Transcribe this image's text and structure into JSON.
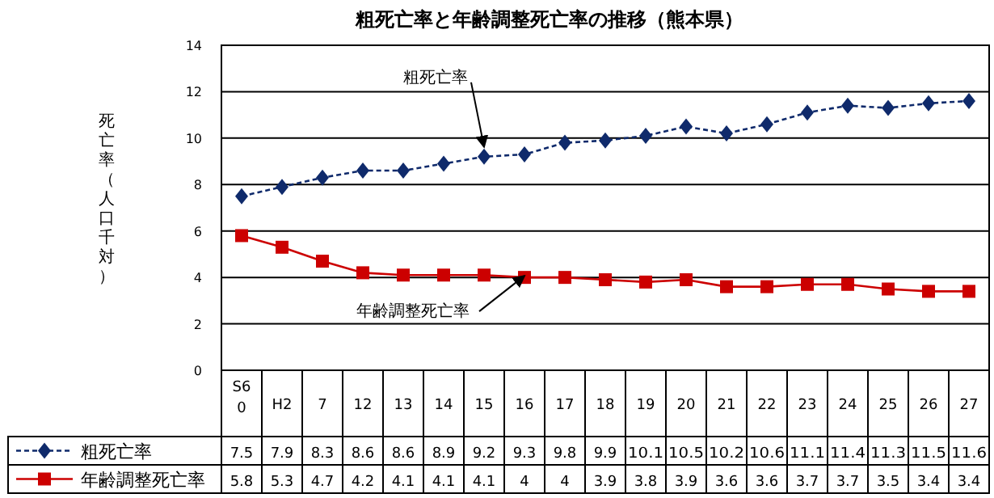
{
  "chart_data": {
    "type": "line",
    "title": "粗死亡率と年齢調整死亡率の推移（熊本県）",
    "ylabel": "死亡率（人口千対）",
    "categories": [
      "S60",
      "H2",
      "7",
      "12",
      "13",
      "14",
      "15",
      "16",
      "17",
      "18",
      "19",
      "20",
      "21",
      "22",
      "23",
      "24",
      "25",
      "26",
      "27"
    ],
    "series": [
      {
        "name": "粗死亡率",
        "color": "#0f2a6b",
        "marker": "diamond",
        "line_style": "dashed",
        "values": [
          7.5,
          7.9,
          8.3,
          8.6,
          8.6,
          8.9,
          9.2,
          9.3,
          9.8,
          9.9,
          10.1,
          10.5,
          10.2,
          10.6,
          11.1,
          11.4,
          11.3,
          11.5,
          11.6
        ]
      },
      {
        "name": "年齢調整死亡率",
        "color": "#cc0000",
        "marker": "square",
        "line_style": "solid",
        "values": [
          5.8,
          5.3,
          4.7,
          4.2,
          4.1,
          4.1,
          4.1,
          4,
          4,
          3.9,
          3.8,
          3.9,
          3.6,
          3.6,
          3.7,
          3.7,
          3.5,
          3.4,
          3.4
        ]
      }
    ],
    "ylim": [
      0,
      14
    ],
    "yticks": [
      0,
      2,
      4,
      6,
      8,
      10,
      12,
      14
    ],
    "grid": "y",
    "legend": "bottom",
    "data_labels": true,
    "annotations": [
      {
        "text": "粗死亡率",
        "x": "15",
        "y": 9.2
      },
      {
        "text": "年齢調整死亡率",
        "x": "16",
        "y": 4
      }
    ]
  }
}
